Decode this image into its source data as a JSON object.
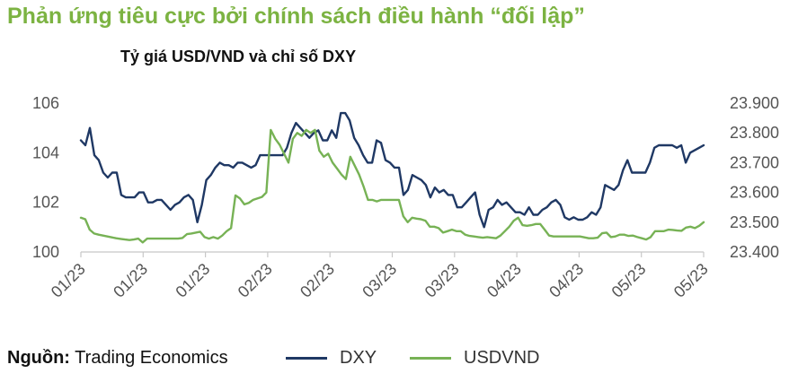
{
  "header": {
    "title": "Phản ứng tiêu cực bởi chính sách điều hành “đối lập”",
    "subtitle": "Tỷ giá USD/VND và chỉ số DXY"
  },
  "footer": {
    "source_label": "Nguồn:",
    "source_text": " Trading Economics"
  },
  "chart_data": {
    "type": "line",
    "title": "Tỷ giá USD/VND và chỉ số DXY",
    "x_tick_labels": [
      "01/23",
      "01/23",
      "01/23",
      "02/23",
      "02/23",
      "03/23",
      "03/23",
      "04/23",
      "04/23",
      "05/23",
      "05/23"
    ],
    "y_left": {
      "ticks": [
        "100",
        "102",
        "104",
        "106"
      ],
      "range": [
        100,
        106
      ]
    },
    "y_right": {
      "ticks": [
        "23.400",
        "23.500",
        "23.600",
        "23.700",
        "23.800",
        "23.900"
      ],
      "range": [
        23400,
        23900
      ]
    },
    "legend_position": "bottom",
    "grid": false,
    "series": [
      {
        "name": "DXY",
        "axis": "left",
        "color": "#1f3864",
        "values": [
          104.5,
          104.3,
          105.0,
          103.9,
          103.7,
          103.2,
          103.0,
          103.2,
          103.2,
          102.3,
          102.2,
          102.2,
          102.2,
          102.4,
          102.4,
          102.0,
          102.0,
          102.1,
          102.1,
          101.9,
          101.7,
          101.9,
          102.0,
          102.2,
          102.3,
          102.1,
          101.2,
          101.9,
          102.9,
          103.1,
          103.4,
          103.6,
          103.5,
          103.5,
          103.4,
          103.6,
          103.6,
          103.5,
          103.4,
          103.5,
          103.9,
          103.9,
          103.9,
          103.9,
          103.9,
          103.9,
          104.2,
          104.8,
          105.2,
          105.0,
          104.8,
          104.6,
          104.8,
          104.9,
          104.5,
          104.5,
          104.9,
          104.6,
          105.6,
          105.6,
          105.3,
          104.6,
          104.3,
          103.9,
          103.6,
          103.6,
          104.5,
          104.4,
          103.7,
          103.6,
          103.4,
          103.4,
          102.3,
          102.5,
          103.1,
          103.0,
          102.9,
          102.7,
          102.2,
          102.6,
          102.4,
          102.5,
          102.3,
          102.3,
          101.8,
          101.8,
          102.0,
          102.2,
          102.4,
          101.5,
          101.0,
          101.7,
          101.8,
          102.1,
          101.9,
          102.0,
          101.8,
          101.6,
          101.6,
          101.5,
          101.8,
          101.5,
          101.5,
          101.7,
          101.8,
          102.0,
          102.1,
          101.9,
          101.4,
          101.3,
          101.4,
          101.3,
          101.3,
          101.4,
          101.6,
          101.5,
          101.8,
          102.7,
          102.6,
          102.5,
          102.7,
          103.3,
          103.7,
          103.2,
          103.2,
          103.2,
          103.2,
          103.6,
          104.2,
          104.3,
          104.3,
          104.3,
          104.3,
          104.2,
          104.3,
          103.6,
          104.0,
          104.1,
          104.2,
          104.3
        ]
      },
      {
        "name": "USDVND",
        "axis": "right",
        "color": "#77b255",
        "values": [
          23515,
          23510,
          23475,
          23462,
          23458,
          23455,
          23452,
          23449,
          23446,
          23444,
          23442,
          23440,
          23442,
          23445,
          23432,
          23445,
          23445,
          23445,
          23445,
          23445,
          23445,
          23445,
          23445,
          23447,
          23460,
          23462,
          23465,
          23468,
          23450,
          23445,
          23450,
          23445,
          23455,
          23470,
          23480,
          23590,
          23580,
          23560,
          23565,
          23575,
          23580,
          23585,
          23600,
          23810,
          23780,
          23760,
          23730,
          23700,
          23780,
          23800,
          23790,
          23810,
          23800,
          23810,
          23740,
          23720,
          23730,
          23700,
          23680,
          23660,
          23645,
          23720,
          23690,
          23660,
          23620,
          23575,
          23575,
          23570,
          23575,
          23575,
          23575,
          23575,
          23575,
          23520,
          23500,
          23515,
          23512,
          23510,
          23505,
          23485,
          23485,
          23480,
          23465,
          23470,
          23475,
          23470,
          23470,
          23458,
          23454,
          23452,
          23450,
          23448,
          23450,
          23448,
          23446,
          23455,
          23470,
          23485,
          23505,
          23515,
          23490,
          23488,
          23490,
          23494,
          23494,
          23475,
          23455,
          23452,
          23452,
          23452,
          23452,
          23452,
          23452,
          23452,
          23449,
          23446,
          23446,
          23448,
          23463,
          23465,
          23450,
          23452,
          23458,
          23458,
          23454,
          23455,
          23450,
          23446,
          23442,
          23450,
          23470,
          23470,
          23470,
          23475,
          23474,
          23472,
          23471,
          23482,
          23485,
          23480,
          23488,
          23500
        ]
      }
    ]
  }
}
